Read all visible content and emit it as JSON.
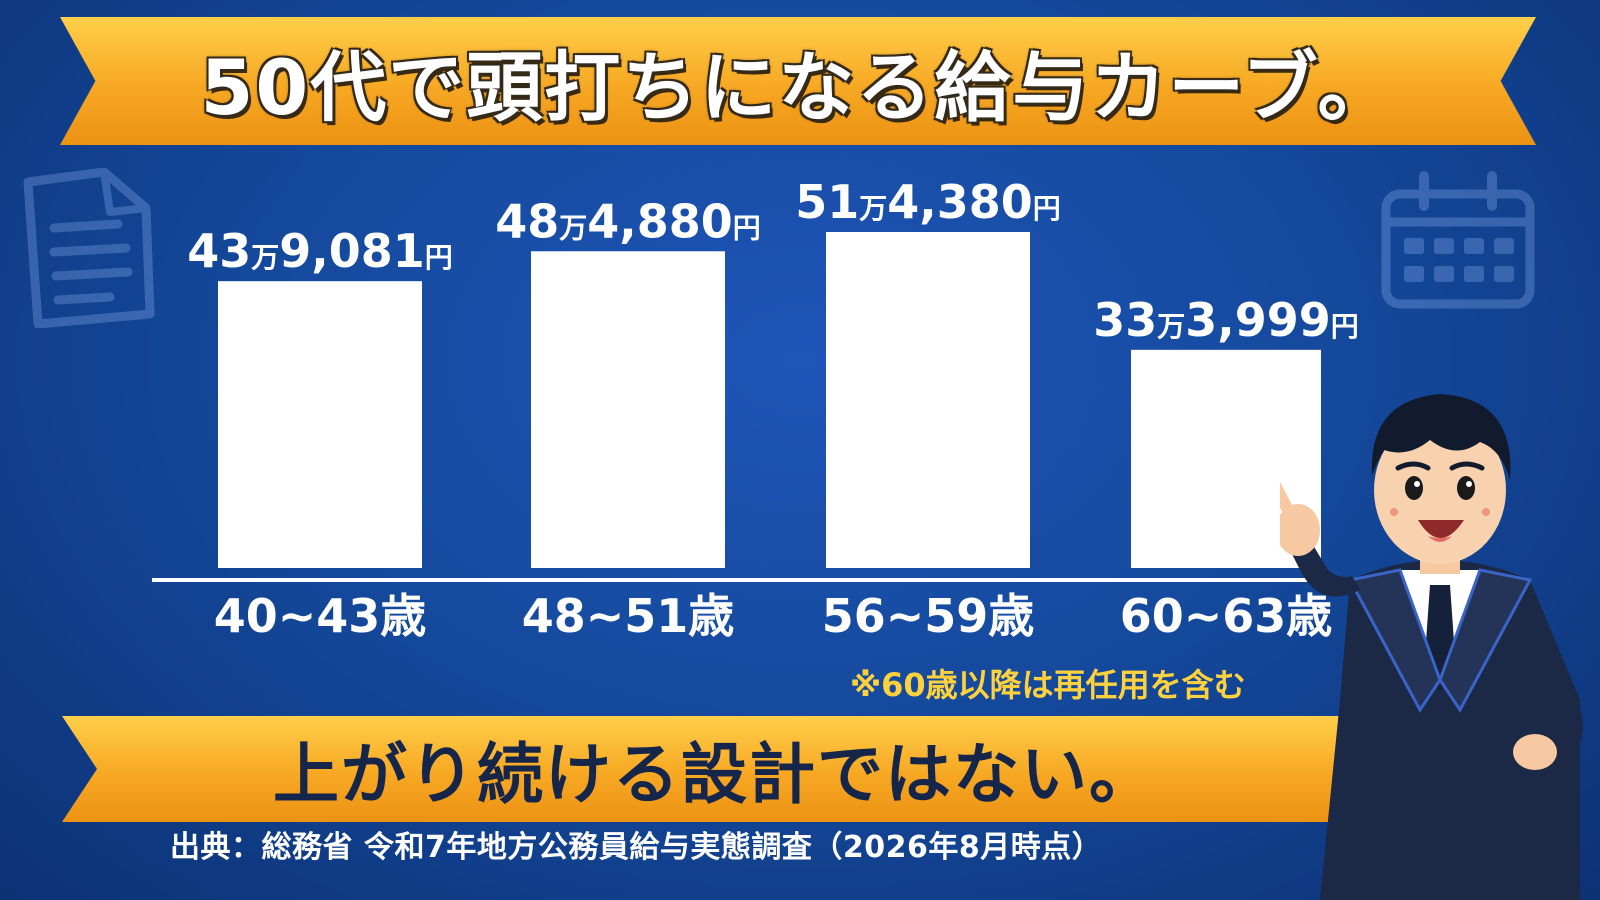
{
  "header": {
    "title": "50代で頭打ちになる給与カーブ。"
  },
  "footer": {
    "subtitle": "上がり続ける設計ではない。",
    "source": "出典：総務省 令和7年地方公務員給与実態調査（2026年8月時点）",
    "note": "※60歳以降は再任用を含む"
  },
  "icons": {
    "left": "document-icon",
    "right": "calendar-icon",
    "character": "businessman-pointing-illustration"
  },
  "colors": {
    "background": "#154a9e",
    "ribbon": "#f7a823",
    "bar": "#ffffff",
    "note": "#ffd23d"
  },
  "chart_data": {
    "type": "bar",
    "categories": [
      "40~43歳",
      "48~51歳",
      "56~59歳",
      "60~63歳"
    ],
    "values": [
      439081,
      484880,
      514380,
      333999
    ],
    "value_labels": [
      {
        "man": "43",
        "unit_man": "万",
        "rest": "9,081",
        "unit_yen": "円"
      },
      {
        "man": "48",
        "unit_man": "万",
        "rest": "4,880",
        "unit_yen": "円"
      },
      {
        "man": "51",
        "unit_man": "万",
        "rest": "4,380",
        "unit_yen": "円"
      },
      {
        "man": "33",
        "unit_man": "万",
        "rest": "3,999",
        "unit_yen": "円"
      }
    ],
    "ylim": [
      0,
      560000
    ],
    "grid": false
  }
}
